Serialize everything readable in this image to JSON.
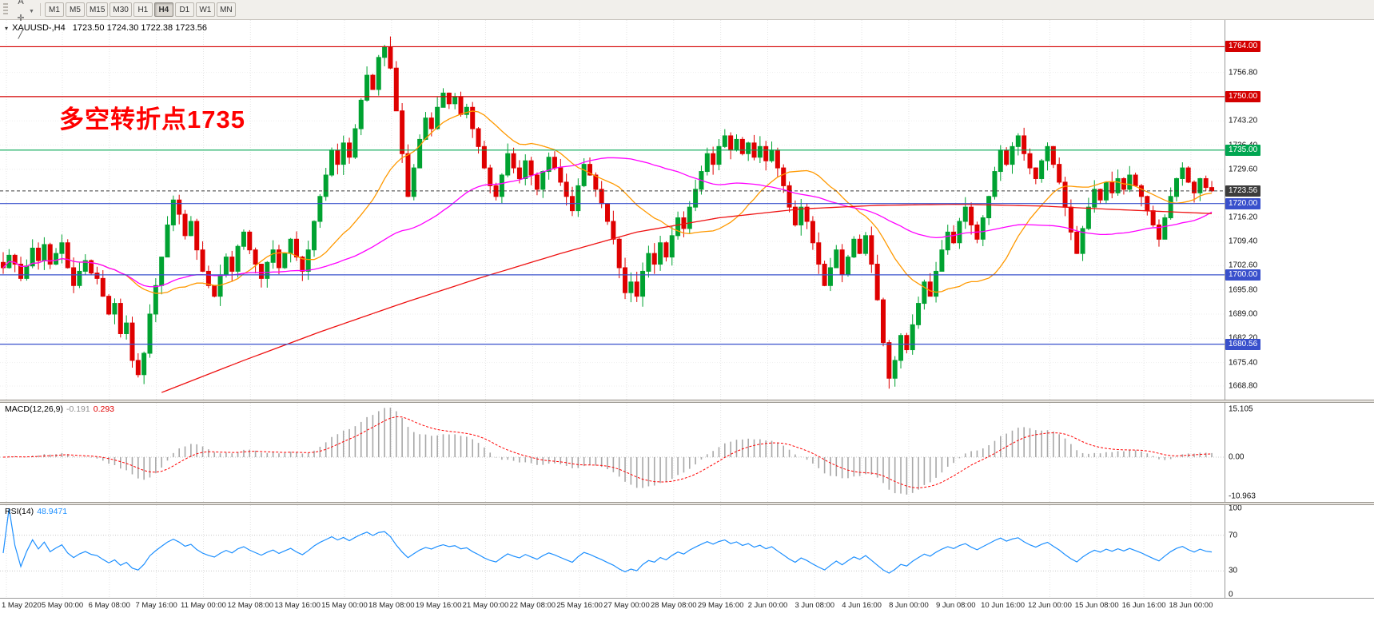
{
  "toolbar": {
    "icons": [
      {
        "name": "chart-windows-icon",
        "glyph": "▤"
      },
      {
        "name": "cursor-text-icon",
        "glyph": "A"
      },
      {
        "name": "crosshair-icon",
        "glyph": "✛"
      },
      {
        "name": "line-studies-icon",
        "glyph": "╱"
      }
    ],
    "timeframes": [
      "M1",
      "M5",
      "M15",
      "M30",
      "H1",
      "H4",
      "D1",
      "W1",
      "MN"
    ],
    "active_timeframe": "H4"
  },
  "header": {
    "dropdown_glyph": "▾",
    "symbol_label": "XAUUSD-,H4",
    "ohlc": "1723.50 1724.30 1722.38 1723.56"
  },
  "annotation": {
    "text": "多空转折点1735",
    "color": "#fe0000"
  },
  "macd_panel": {
    "title": "MACD(12,26,9)",
    "value_main": "-0.191",
    "value_signal": "0.293"
  },
  "rsi_panel": {
    "title": "RSI(14)",
    "value": "48.9471"
  },
  "chart_data": {
    "type": "candlestick",
    "symbol": "XAUUSD-",
    "timeframe": "H4",
    "ylim": [
      1665.0,
      1771.5
    ],
    "closes": [
      1702,
      1705.5,
      1703,
      1699,
      1702.5,
      1707.5,
      1704,
      1708.5,
      1703,
      1706,
      1709,
      1702,
      1697,
      1701,
      1704,
      1700.5,
      1699,
      1694,
      1689,
      1692,
      1683.5,
      1686.5,
      1676,
      1672,
      1678,
      1689,
      1697,
      1705,
      1714,
      1721,
      1717,
      1711,
      1715,
      1707,
      1701,
      1697,
      1694,
      1700,
      1705,
      1701,
      1708,
      1712,
      1707,
      1703,
      1699,
      1703.5,
      1707,
      1702,
      1706,
      1710,
      1705,
      1701,
      1707,
      1715,
      1722,
      1728,
      1735,
      1731,
      1737,
      1733,
      1741,
      1749,
      1756,
      1752,
      1761,
      1764,
      1758,
      1746,
      1734,
      1722,
      1730,
      1738,
      1744,
      1741,
      1747,
      1751,
      1748,
      1750,
      1745,
      1747,
      1741,
      1736,
      1730,
      1725,
      1722,
      1728,
      1734,
      1730,
      1727,
      1732,
      1728,
      1724,
      1729,
      1733,
      1730,
      1726,
      1722,
      1718,
      1725,
      1731,
      1728,
      1724,
      1720,
      1715,
      1710,
      1702,
      1695,
      1698,
      1694,
      1701,
      1706,
      1703,
      1709,
      1705,
      1711,
      1716,
      1713,
      1719,
      1724,
      1729,
      1734,
      1731,
      1736,
      1739,
      1735,
      1738,
      1734,
      1737,
      1733,
      1736,
      1732,
      1735,
      1730,
      1725,
      1719,
      1714,
      1719,
      1715,
      1709,
      1703,
      1697,
      1702,
      1707,
      1700,
      1705,
      1710,
      1706,
      1711,
      1703,
      1693,
      1681,
      1671,
      1676,
      1683,
      1679,
      1686,
      1692,
      1698,
      1694,
      1701,
      1707,
      1712,
      1709,
      1715,
      1719,
      1714,
      1710,
      1716,
      1722,
      1729,
      1735,
      1731,
      1736,
      1739,
      1734,
      1730,
      1727,
      1732,
      1736,
      1731,
      1726,
      1719,
      1712,
      1706,
      1713,
      1719,
      1724,
      1721,
      1726,
      1723,
      1727,
      1724,
      1728,
      1725,
      1722,
      1718,
      1714,
      1710,
      1716,
      1722,
      1727,
      1730,
      1726,
      1723,
      1727,
      1724.5,
      1723.56
    ],
    "candle_colors": {
      "up": "#00a231",
      "down": "#df0000"
    },
    "price_ticks": [
      1756.8,
      1743.2,
      1736.4,
      1729.6,
      1716.2,
      1709.4,
      1702.6,
      1695.8,
      1689.0,
      1682.2,
      1675.4,
      1668.8
    ],
    "price_lines": [
      {
        "price": 1764.0,
        "label": "1764.00",
        "color": "#d40000",
        "style": "solid"
      },
      {
        "price": 1750.0,
        "label": "1750.00",
        "color": "#d40000",
        "style": "solid"
      },
      {
        "price": 1735.0,
        "label": "1735.00",
        "color": "#00a651",
        "style": "solid"
      },
      {
        "price": 1723.56,
        "label": "1723.56",
        "color": "#3c3c3c",
        "style": "dashed"
      },
      {
        "price": 1720.0,
        "label": "1720.00",
        "color": "#3950cc",
        "style": "solid"
      },
      {
        "price": 1700.0,
        "label": "1700.00",
        "color": "#3950cc",
        "style": "solid"
      },
      {
        "price": 1680.56,
        "label": "1680.56",
        "color": "#3950cc",
        "style": "solid"
      }
    ],
    "time_ticks": [
      "1 May 2020",
      "5 May 00:00",
      "6 May 08:00",
      "7 May 16:00",
      "11 May 00:00",
      "12 May 08:00",
      "13 May 16:00",
      "15 May 00:00",
      "18 May 08:00",
      "19 May 16:00",
      "21 May 00:00",
      "22 May 08:00",
      "25 May 16:00",
      "27 May 00:00",
      "28 May 08:00",
      "29 May 16:00",
      "2 Jun 00:00",
      "3 Jun 08:00",
      "4 Jun 16:00",
      "8 Jun 00:00",
      "9 Jun 08:00",
      "10 Jun 16:00",
      "12 Jun 00:00",
      "15 Jun 08:00",
      "16 Jun 16:00",
      "18 Jun 00:00"
    ],
    "moving_averages": {
      "fast_period": 21,
      "fast_color": "#ff9900",
      "mid_period": 55,
      "mid_color": "#ff00ff",
      "slow_color": "#ee1111",
      "slow_waypoints": [
        [
          27,
          1667
        ],
        [
          41,
          1676
        ],
        [
          54,
          1684
        ],
        [
          68,
          1692
        ],
        [
          81,
          1699
        ],
        [
          95,
          1706
        ],
        [
          108,
          1712
        ],
        [
          122,
          1716
        ],
        [
          136,
          1718.5
        ],
        [
          149,
          1719.5
        ],
        [
          163,
          1719.8
        ],
        [
          177,
          1719.3
        ],
        [
          190,
          1718.3
        ],
        [
          206,
          1717.2
        ]
      ]
    },
    "macd": {
      "periods": [
        12,
        26,
        9
      ],
      "hist_color": "#a8a8a8",
      "signal_color": "#ff0000",
      "axis_labels": [
        "15.105",
        "0.00",
        "-10.963"
      ]
    },
    "rsi": {
      "period": 14,
      "color": "#1e90ff",
      "levels": [
        70,
        30
      ],
      "axis_labels": [
        "100",
        "70",
        "30",
        "0"
      ]
    }
  }
}
